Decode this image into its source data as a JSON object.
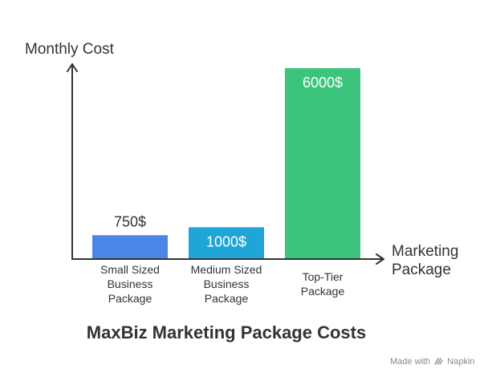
{
  "chart_data": {
    "type": "bar",
    "title": "MaxBiz Marketing Package Costs",
    "ylabel": "Monthly Cost",
    "xlabel_lines": [
      "Marketing",
      "Package"
    ],
    "ylim": [
      0,
      6000
    ],
    "grid": false,
    "categories": [
      [
        "Small Sized",
        "Business",
        "Package"
      ],
      [
        "Medium Sized",
        "Business",
        "Package"
      ],
      [
        "Top-Tier",
        "Package"
      ]
    ],
    "values": [
      750,
      1000,
      6000
    ],
    "value_labels": [
      "750$",
      "1000$",
      "6000$"
    ],
    "colors": [
      "#4a86e8",
      "#1fa5d8",
      "#3cc47c"
    ]
  },
  "footer": {
    "made_with": "Made with",
    "brand": "Napkin"
  }
}
